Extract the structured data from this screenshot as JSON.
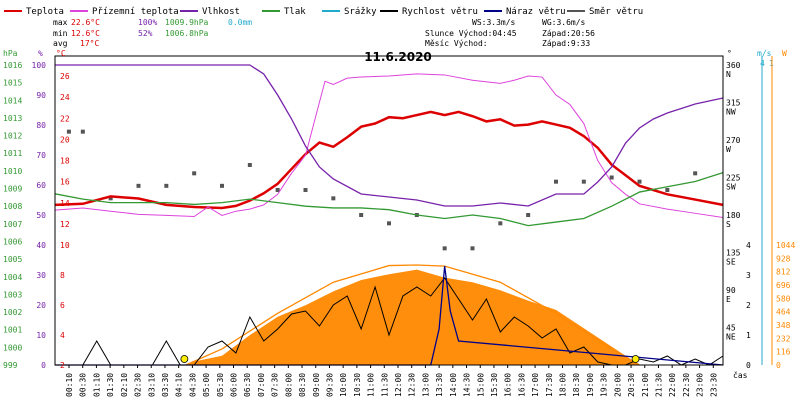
{
  "chart_data": {
    "type": "line",
    "title": "11.6.2020",
    "legend": [
      {
        "name": "Teplota",
        "color": "#dd0000"
      },
      {
        "name": "Přízemní teplota",
        "color": "#dd44dd"
      },
      {
        "name": "Vlhkost",
        "color": "#7722aa"
      },
      {
        "name": "Tlak",
        "color": "#339933"
      },
      {
        "name": "Srážky",
        "color": "#22aacc"
      },
      {
        "name": "Rychlost větru",
        "color": "#000000"
      },
      {
        "name": "Náraz větru",
        "color": "#000088"
      },
      {
        "name": "Směr větru",
        "color": "#555555"
      }
    ],
    "stats": {
      "max_label": "max",
      "min_label": "min",
      "avg_label": "avg",
      "max_temp": "22.6°C",
      "max_hum": "100%",
      "max_press": "1009.9hPa",
      "max_rain": "0.0mm",
      "min_temp": "12.6°C",
      "min_hum": "52%",
      "min_press": "1006.8hPa",
      "avg_temp": "17°C",
      "ws": "WS:3.3m/s",
      "wg": "WG:3.6m/s",
      "sun": "Slunce Východ:04:45",
      "sunset": "Západ:20:56",
      "moon": "Měsíc  Východ:",
      "moonset": "Západ:9:33"
    },
    "axes_left": {
      "hpa_label": "hPa",
      "pct_label": "%",
      "c_label": "°C",
      "hpa_ticks": [
        "1016",
        "1015",
        "1014",
        "1013",
        "1012",
        "1011",
        "1010",
        "1009",
        "1008",
        "1007",
        "1006",
        "1005",
        "1004",
        "1003",
        "1002",
        "1001",
        "1000",
        "999"
      ],
      "pct_ticks": [
        "100",
        "90",
        "80",
        "70",
        "60",
        "50",
        "40",
        "30",
        "20",
        "10",
        "0"
      ],
      "c_ticks": [
        "26",
        "24",
        "22",
        "20",
        "18",
        "16",
        "14",
        "12",
        "10",
        "8",
        "6",
        "4",
        "2"
      ]
    },
    "axes_right": {
      "dir_label": "°",
      "ms_label": "m/s",
      "mm_label": "mm",
      "w_label": "W",
      "dir_ticks": [
        {
          "deg": "360",
          "cd": "N"
        },
        {
          "deg": "315",
          "cd": "NW"
        },
        {
          "deg": "270",
          "cd": "W"
        },
        {
          "deg": "225",
          "cd": "SW"
        },
        {
          "deg": "180",
          "cd": "S"
        },
        {
          "deg": "135",
          "cd": "SE"
        },
        {
          "deg": "90",
          "cd": "E"
        },
        {
          "deg": "45",
          "cd": "NE"
        }
      ],
      "ms_top": "4",
      "ms_ticks": [
        "4",
        "3",
        "2",
        "1",
        "0"
      ],
      "mm_top": "1",
      "w_ticks": [
        "1044",
        "928",
        "812",
        "696",
        "580",
        "464",
        "348",
        "232",
        "116",
        "0"
      ],
      "x_unit": "čas"
    },
    "x_ticks": [
      "00:10",
      "00:30",
      "01:10",
      "01:30",
      "02:10",
      "02:30",
      "03:10",
      "03:30",
      "04:10",
      "04:30",
      "05:00",
      "05:30",
      "06:00",
      "06:30",
      "07:00",
      "07:30",
      "08:00",
      "08:30",
      "09:00",
      "09:30",
      "10:00",
      "10:30",
      "11:00",
      "11:30",
      "12:00",
      "12:30",
      "13:00",
      "13:30",
      "14:00",
      "14:30",
      "15:00",
      "15:30",
      "16:00",
      "16:30",
      "17:00",
      "17:30",
      "18:00",
      "18:30",
      "19:00",
      "19:30",
      "20:00",
      "20:30",
      "21:00",
      "21:30",
      "22:00",
      "22:30",
      "23:00",
      "23:30"
    ],
    "x_hours": [
      0,
      24
    ],
    "series": [
      {
        "name": "Teplota",
        "x": [
          0,
          1,
          2,
          3,
          4,
          5,
          6,
          6.5,
          7,
          7.5,
          8,
          8.5,
          9,
          9.5,
          10,
          10.5,
          11,
          11.5,
          12,
          12.5,
          13,
          13.5,
          14,
          14.5,
          15,
          15.5,
          16,
          16.5,
          17,
          17.5,
          18,
          18.5,
          19,
          19.5,
          20,
          20.5,
          21,
          22,
          23,
          24
        ],
        "values": [
          13.8,
          13.9,
          14.6,
          14.4,
          13.8,
          13.6,
          13.5,
          13.7,
          14.2,
          14.9,
          15.8,
          17.2,
          18.6,
          19.7,
          19.3,
          20.2,
          21.2,
          21.5,
          22.1,
          22.0,
          22.3,
          22.6,
          22.3,
          22.6,
          22.2,
          21.7,
          21.9,
          21.3,
          21.4,
          21.7,
          21.4,
          21.1,
          20.3,
          19.2,
          17.6,
          16.6,
          15.6,
          14.8,
          14.3,
          13.8
        ]
      },
      {
        "name": "Přízemní teplota",
        "x": [
          0,
          1,
          2,
          3,
          4,
          5,
          5.5,
          6,
          6.5,
          7,
          7.5,
          8,
          8.5,
          9,
          9.3,
          9.7,
          10,
          10.5,
          11,
          12,
          13,
          14,
          15,
          16,
          16.5,
          17,
          17.5,
          18,
          18.5,
          19,
          19.5,
          20,
          20.5,
          21,
          22,
          23,
          24
        ],
        "values": [
          13.3,
          13.5,
          13.2,
          12.9,
          12.8,
          12.7,
          13.6,
          12.8,
          13.2,
          13.4,
          13.8,
          14.8,
          16.8,
          18.5,
          21.5,
          25.5,
          25.2,
          25.8,
          25.9,
          26.0,
          26.2,
          26.1,
          25.6,
          25.3,
          25.6,
          26.0,
          25.9,
          24.2,
          23.3,
          21.5,
          18.0,
          15.9,
          14.8,
          13.9,
          13.4,
          13.0,
          12.6
        ]
      },
      {
        "name": "Vlhkost",
        "x": [
          0,
          1,
          2,
          3,
          4,
          5,
          6,
          7,
          7.5,
          8,
          8.5,
          9,
          9.5,
          10,
          11,
          12,
          13,
          14,
          15,
          16,
          17,
          18,
          19,
          19.5,
          20,
          20.5,
          21,
          21.5,
          22,
          23,
          24
        ],
        "values": [
          100,
          100,
          100,
          100,
          100,
          100,
          100,
          100,
          97,
          90,
          82,
          73,
          66,
          62,
          57,
          56,
          55,
          53,
          53,
          54,
          53,
          57,
          57,
          61,
          66,
          74,
          79,
          82,
          84,
          87,
          89
        ]
      },
      {
        "name": "Tlak",
        "x": [
          0,
          1,
          2,
          3,
          4,
          5,
          6,
          7,
          8,
          9,
          10,
          11,
          12,
          13,
          14,
          15,
          16,
          17,
          18,
          19,
          20,
          21,
          22,
          23,
          24
        ],
        "values": [
          1008.7,
          1008.4,
          1008.2,
          1008.2,
          1008.2,
          1008.1,
          1008.2,
          1008.4,
          1008.2,
          1008.0,
          1007.9,
          1007.9,
          1007.8,
          1007.5,
          1007.3,
          1007.5,
          1007.3,
          1006.9,
          1007.1,
          1007.3,
          1008.0,
          1008.8,
          1009.1,
          1009.4,
          1009.9
        ]
      },
      {
        "name": "Rychlost větru",
        "x": [
          0,
          0.5,
          1,
          1.5,
          2,
          2.5,
          3,
          3.5,
          4,
          4.5,
          5,
          5.5,
          6,
          6.5,
          7,
          7.5,
          8,
          8.5,
          9,
          9.5,
          10,
          10.5,
          11,
          11.5,
          12,
          12.5,
          13,
          13.5,
          14,
          14.5,
          15,
          15.5,
          16,
          16.5,
          17,
          17.5,
          18,
          18.5,
          19,
          19.5,
          20,
          20.5,
          21,
          21.5,
          22,
          22.5,
          23,
          23.5,
          24
        ],
        "values": [
          0,
          0,
          0,
          0.8,
          0,
          0,
          0,
          0,
          0.8,
          0,
          0,
          0.6,
          0.8,
          0.4,
          1.6,
          0.8,
          1.2,
          1.7,
          1.8,
          1.3,
          2.0,
          2.3,
          1.2,
          2.6,
          1.0,
          2.3,
          2.6,
          2.3,
          2.9,
          2.2,
          1.5,
          2.2,
          1.1,
          1.6,
          1.3,
          0.9,
          1.2,
          0.4,
          0.6,
          0.1,
          0,
          0,
          0.2,
          0.1,
          0.3,
          0,
          0.2,
          0,
          0.3
        ]
      },
      {
        "name": "Náraz větru",
        "x": [
          0,
          13.5,
          13.8,
          14.0,
          14.2,
          14.5,
          24
        ],
        "values": [
          0,
          0,
          1.2,
          3.3,
          1.8,
          0.8,
          0
        ]
      },
      {
        "name": "Srážky",
        "x": [
          0,
          24
        ],
        "values": [
          0,
          0
        ]
      }
    ],
    "solar": {
      "x": [
        0,
        3,
        4.7,
        5,
        6,
        7,
        8,
        9,
        10,
        11,
        12,
        13,
        14,
        15,
        16,
        17,
        18,
        19,
        20,
        21,
        24
      ],
      "values": [
        0,
        0,
        0,
        30,
        80,
        260,
        420,
        520,
        640,
        740,
        790,
        830,
        760,
        720,
        650,
        560,
        480,
        320,
        160,
        0,
        0
      ],
      "color": "#ff8800"
    },
    "solar_theoretical": {
      "x": [
        4.7,
        6,
        8,
        10,
        12,
        13,
        14,
        16,
        18,
        20,
        21
      ],
      "values": [
        0,
        140,
        450,
        720,
        865,
        870,
        860,
        720,
        450,
        140,
        0
      ]
    },
    "wind_dir": {
      "x": [
        0.5,
        1,
        2,
        3,
        4,
        5,
        6,
        7,
        8,
        9,
        10,
        11,
        12,
        13,
        14,
        15,
        16,
        17,
        18,
        19,
        20,
        21,
        22,
        23
      ],
      "values": [
        280,
        280,
        200,
        215,
        215,
        230,
        215,
        240,
        210,
        210,
        200,
        180,
        170,
        180,
        140,
        140,
        170,
        180,
        220,
        220,
        225,
        220,
        210,
        230
      ]
    }
  }
}
